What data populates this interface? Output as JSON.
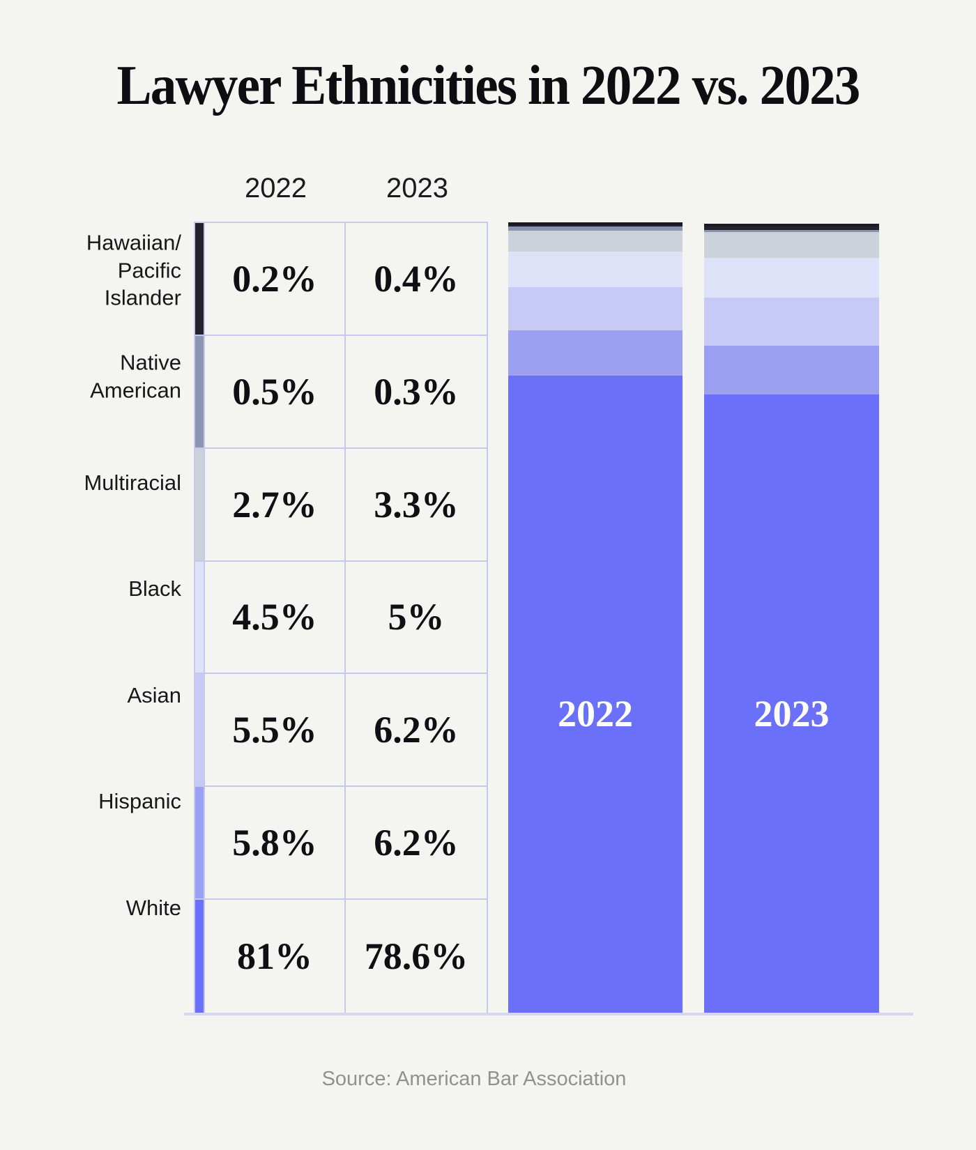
{
  "title": "Lawyer Ethnicities in 2022 vs. 2023",
  "col_headers": {
    "y2022": "2022",
    "y2023": "2023"
  },
  "rows": [
    {
      "label": "Hawaiian/\nPacific\nIslander",
      "v2022": "0.2%",
      "v2023": "0.4%",
      "color": "#23232e"
    },
    {
      "label": "Native\nAmerican",
      "v2022": "0.5%",
      "v2023": "0.3%",
      "color": "#8b95b2"
    },
    {
      "label": "Multiracial",
      "v2022": "2.7%",
      "v2023": "3.3%",
      "color": "#cdd1da"
    },
    {
      "label": "Black",
      "v2022": "4.5%",
      "v2023": "5%",
      "color": "#dfe1f9"
    },
    {
      "label": "Asian",
      "v2022": "5.5%",
      "v2023": "6.2%",
      "color": "#c8caf6"
    },
    {
      "label": "Hispanic",
      "v2022": "5.8%",
      "v2023": "6.2%",
      "color": "#9ba0f3"
    },
    {
      "label": "White",
      "v2022": "81%",
      "v2023": "78.6%",
      "color": "#6b70fa"
    }
  ],
  "bar_labels": {
    "b2022": "2022",
    "b2023": "2023"
  },
  "source": "Source: American Bar Association",
  "colors": {
    "background": "#f4f4f1",
    "table_border": "#c6c7ed",
    "baseline": "#d5d6f2",
    "bar_top_border": "#1a1a24",
    "accent_purple": "#6b70fa"
  },
  "chart_data": {
    "type": "bar",
    "variant": "stacked-100-percent-columns",
    "title": "Lawyer Ethnicities in 2022 vs. 2023",
    "x": [
      "2022",
      "2023"
    ],
    "categories": [
      "Hawaiian/Pacific Islander",
      "Native American",
      "Multiracial",
      "Black",
      "Asian",
      "Hispanic",
      "White"
    ],
    "series": [
      {
        "name": "2022",
        "values": [
          0.2,
          0.5,
          2.7,
          4.5,
          5.5,
          5.8,
          81
        ]
      },
      {
        "name": "2023",
        "values": [
          0.4,
          0.3,
          3.3,
          5,
          6.2,
          6.2,
          78.6
        ]
      }
    ],
    "segment_colors": [
      "#23232e",
      "#8b95b2",
      "#cdd1da",
      "#dfe1f9",
      "#c8caf6",
      "#9ba0f3",
      "#6b70fa"
    ],
    "stack_order": "top-to-bottom as listed in categories (White at bottom)",
    "ylim": [
      0,
      100
    ],
    "grid": false,
    "legend_position": "left table with color swatch strip",
    "source": "Source: American Bar Association"
  }
}
